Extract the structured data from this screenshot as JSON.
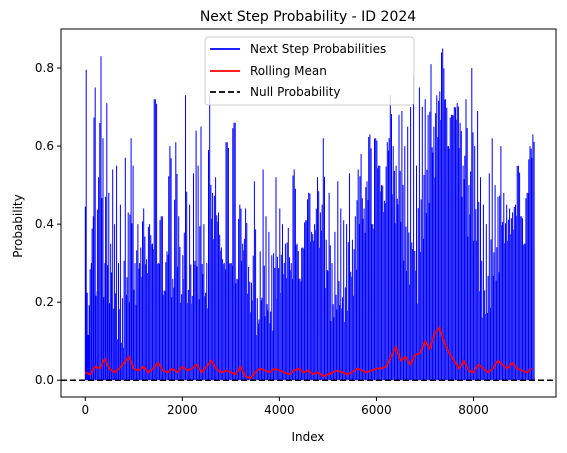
{
  "chart_data": {
    "type": "line",
    "title": "Next Step Probability - ID 2024",
    "xlabel": "Index",
    "ylabel": "Probability",
    "xlim": [
      -500,
      9700
    ],
    "ylim": [
      -0.043,
      0.9
    ],
    "x_ticks": [
      0,
      2000,
      4000,
      6000,
      8000
    ],
    "x_tick_labels": [
      "0",
      "2000",
      "4000",
      "6000",
      "8000"
    ],
    "y_ticks": [
      0.0,
      0.2,
      0.4,
      0.6,
      0.8
    ],
    "y_tick_labels": [
      "0.0",
      "0.2",
      "0.4",
      "0.6",
      "0.8"
    ],
    "grid": false,
    "legend_position": "top-center",
    "x_range_of_series": [
      0,
      9220
    ],
    "series": [
      {
        "name": "Next Step Probabilities",
        "color": "#0000ff",
        "style": "solid",
        "x": [
          0,
          20,
          40,
          60,
          80,
          100,
          140,
          180,
          220,
          250,
          300,
          340,
          380,
          420,
          460,
          500,
          540,
          580,
          620,
          660,
          700,
          740,
          800,
          860,
          920,
          960,
          1000,
          1060,
          1120,
          1180,
          1240,
          1300,
          1360,
          1420,
          1480,
          1540,
          1600,
          1660,
          1720,
          1780,
          1840,
          1900,
          1960,
          2040,
          2100,
          2180,
          2260,
          2300,
          2360,
          2420,
          2480,
          2540,
          2600,
          2660,
          2720,
          2780,
          2840,
          2900,
          2960,
          3040,
          3100,
          3160,
          3220,
          3280,
          3340,
          3400,
          3460,
          3520,
          3580,
          3640,
          3700,
          3760,
          3820,
          3880,
          3960,
          4040,
          4100,
          4160,
          4220,
          4280,
          4340,
          4400,
          4460,
          4520,
          4580,
          4640,
          4700,
          4760,
          4820,
          4880,
          4940,
          5000,
          5060,
          5120,
          5180,
          5240,
          5300,
          5360,
          5420,
          5480,
          5540,
          5600,
          5660,
          5720,
          5780,
          5840,
          5900,
          5960,
          6020,
          6080,
          6140,
          6200,
          6260,
          6320,
          6380,
          6440,
          6500,
          6560,
          6620,
          6680,
          6740,
          6800,
          6860,
          6920,
          6980,
          7040,
          7100,
          7160,
          7220,
          7280,
          7340,
          7400,
          7460,
          7520,
          7580,
          7640,
          7700,
          7760,
          7820,
          7880,
          7940,
          8000,
          8060,
          8120,
          8180,
          8240,
          8300,
          8360,
          8420,
          8480,
          8540,
          8600,
          8660,
          8720,
          8780,
          8840,
          8900,
          8960,
          9020,
          9080,
          9140,
          9200
        ],
        "values": [
          0.45,
          0.81,
          0.23,
          0.12,
          0.2,
          0.3,
          0.42,
          0.75,
          0.25,
          0.52,
          0.83,
          0.62,
          0.3,
          0.71,
          0.48,
          0.35,
          0.54,
          0.4,
          0.55,
          0.3,
          0.45,
          0.21,
          0.57,
          0.43,
          0.62,
          0.55,
          0.3,
          0.4,
          0.34,
          0.44,
          0.31,
          0.4,
          0.35,
          0.72,
          0.3,
          0.42,
          0.23,
          0.33,
          0.6,
          0.26,
          0.61,
          0.42,
          0.32,
          0.73,
          0.45,
          0.53,
          0.64,
          0.55,
          0.65,
          0.4,
          0.3,
          0.73,
          0.48,
          0.52,
          0.43,
          0.34,
          0.3,
          0.61,
          0.3,
          0.66,
          0.26,
          0.45,
          0.35,
          0.44,
          0.29,
          0.25,
          0.51,
          0.21,
          0.33,
          0.54,
          0.42,
          0.38,
          0.32,
          0.52,
          0.44,
          0.4,
          0.35,
          0.39,
          0.3,
          0.54,
          0.35,
          0.26,
          0.34,
          0.41,
          0.48,
          0.38,
          0.4,
          0.52,
          0.43,
          0.62,
          0.36,
          0.48,
          0.3,
          0.38,
          0.51,
          0.44,
          0.41,
          0.4,
          0.53,
          0.36,
          0.42,
          0.54,
          0.58,
          0.44,
          0.51,
          0.63,
          0.4,
          0.62,
          0.55,
          0.5,
          0.46,
          0.61,
          0.73,
          0.6,
          0.55,
          0.68,
          0.69,
          0.6,
          0.65,
          0.7,
          0.78,
          0.55,
          0.75,
          0.7,
          0.72,
          0.68,
          0.81,
          0.65,
          0.73,
          0.74,
          0.85,
          0.72,
          0.6,
          0.68,
          0.7,
          0.71,
          0.66,
          0.55,
          0.72,
          0.5,
          0.8,
          0.6,
          0.69,
          0.52,
          0.45,
          0.4,
          0.53,
          0.62,
          0.5,
          0.47,
          0.6,
          0.48,
          0.45,
          0.44,
          0.43,
          0.45,
          0.55,
          0.42,
          0.35,
          0.48,
          0.6,
          0.63
        ]
      },
      {
        "name": "Rolling Mean",
        "color": "#ff0000",
        "style": "solid",
        "x": [
          0,
          100,
          200,
          300,
          400,
          500,
          600,
          700,
          800,
          900,
          1000,
          1100,
          1200,
          1300,
          1400,
          1500,
          1600,
          1700,
          1800,
          1900,
          2000,
          2100,
          2200,
          2300,
          2400,
          2500,
          2600,
          2700,
          2800,
          2900,
          3000,
          3100,
          3200,
          3300,
          3400,
          3500,
          3600,
          3700,
          3800,
          3900,
          4000,
          4100,
          4200,
          4300,
          4400,
          4500,
          4600,
          4700,
          4800,
          4900,
          5000,
          5100,
          5200,
          5300,
          5400,
          5500,
          5600,
          5700,
          5800,
          5900,
          6000,
          6100,
          6200,
          6300,
          6400,
          6500,
          6600,
          6700,
          6800,
          6900,
          7000,
          7100,
          7200,
          7300,
          7400,
          7500,
          7600,
          7700,
          7800,
          7900,
          8000,
          8100,
          8200,
          8300,
          8400,
          8500,
          8600,
          8700,
          8800,
          8900,
          9000,
          9100,
          9200
        ],
        "values": [
          0.02,
          0.015,
          0.035,
          0.03,
          0.055,
          0.03,
          0.02,
          0.03,
          0.045,
          0.06,
          0.03,
          0.025,
          0.035,
          0.02,
          0.03,
          0.045,
          0.025,
          0.02,
          0.03,
          0.02,
          0.035,
          0.025,
          0.03,
          0.04,
          0.02,
          0.035,
          0.05,
          0.03,
          0.02,
          0.025,
          0.02,
          0.015,
          0.035,
          0.01,
          0.005,
          0.02,
          0.03,
          0.025,
          0.02,
          0.03,
          0.025,
          0.02,
          0.015,
          0.025,
          0.03,
          0.02,
          0.025,
          0.015,
          0.02,
          0.01,
          0.015,
          0.02,
          0.025,
          0.02,
          0.015,
          0.02,
          0.03,
          0.025,
          0.02,
          0.025,
          0.03,
          0.03,
          0.035,
          0.06,
          0.085,
          0.05,
          0.06,
          0.04,
          0.065,
          0.07,
          0.1,
          0.08,
          0.12,
          0.135,
          0.095,
          0.07,
          0.05,
          0.03,
          0.05,
          0.025,
          0.02,
          0.04,
          0.03,
          0.02,
          0.03,
          0.05,
          0.04,
          0.03,
          0.045,
          0.03,
          0.025,
          0.02,
          0.03
        ]
      },
      {
        "name": "Null Probability",
        "color": "#000000",
        "style": "dashed",
        "y_constant": 0.0
      }
    ]
  }
}
